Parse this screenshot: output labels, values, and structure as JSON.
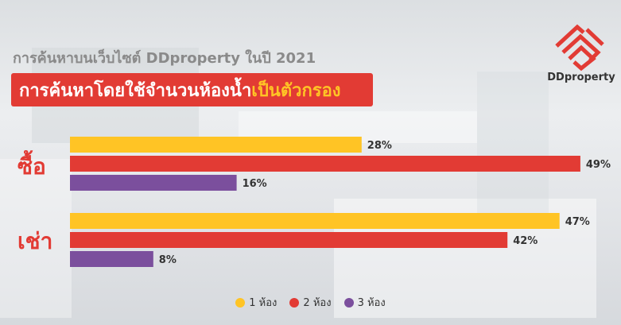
{
  "header": {
    "subtitle": "การค้นหาบนเว็บไซต์ DDproperty ในปี 2021",
    "title_main": "การค้นหาโดยใช้จำนวนห้องน้ำ",
    "title_accent": "เป็นตัวกรอง"
  },
  "brand": {
    "name": "DDproperty",
    "color": "#e23b34"
  },
  "chart_data": {
    "type": "bar",
    "orientation": "horizontal",
    "categories": [
      "ซื้อ",
      "เช่า"
    ],
    "series": [
      {
        "name": "1 ห้อง",
        "color": "#ffc425",
        "values": [
          28,
          47
        ],
        "labels": [
          "28%",
          "47%"
        ]
      },
      {
        "name": "2 ห้อง",
        "color": "#e23b34",
        "values": [
          49,
          42
        ],
        "labels": [
          "49%",
          "42%"
        ]
      },
      {
        "name": "3 ห้อง",
        "color": "#7b4f9d",
        "values": [
          16,
          8
        ],
        "labels": [
          "16%",
          "8%"
        ]
      }
    ],
    "unit": "%",
    "xlim": [
      0,
      50
    ],
    "grid": false,
    "legend_position": "bottom"
  }
}
